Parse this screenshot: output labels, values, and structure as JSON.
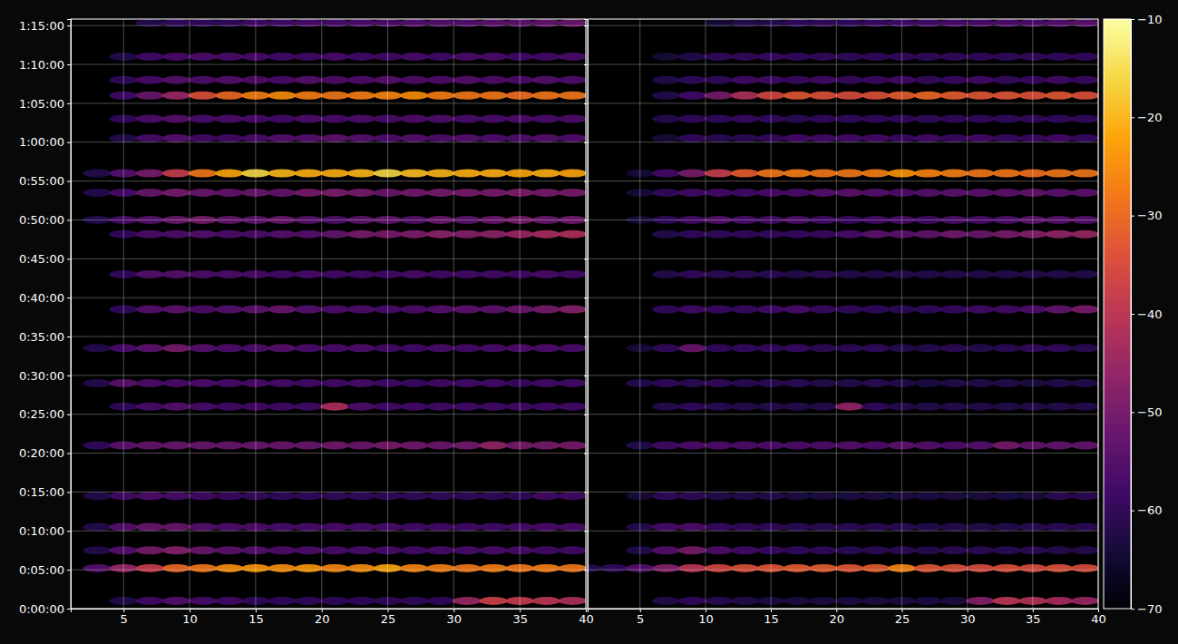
{
  "chart_data": [
    {
      "type": "heatmap",
      "grid": true,
      "xlim": [
        1,
        40
      ],
      "xticks": [
        5,
        10,
        15,
        20,
        25,
        30,
        35,
        40
      ],
      "ylim": [
        0,
        4550
      ],
      "yticks": [
        {
          "value": 0,
          "label": "0:00:00"
        },
        {
          "value": 300,
          "label": "0:05:00"
        },
        {
          "value": 600,
          "label": "0:10:00"
        },
        {
          "value": 900,
          "label": "0:15:00"
        },
        {
          "value": 1200,
          "label": "0:20:00"
        },
        {
          "value": 1500,
          "label": "0:25:00"
        },
        {
          "value": 1800,
          "label": "0:30:00"
        },
        {
          "value": 2100,
          "label": "0:35:00"
        },
        {
          "value": 2400,
          "label": "0:40:00"
        },
        {
          "value": 2700,
          "label": "0:45:00"
        },
        {
          "value": 3000,
          "label": "0:50:00"
        },
        {
          "value": 3300,
          "label": "0:55:00"
        },
        {
          "value": 3600,
          "label": "1:00:00"
        },
        {
          "value": 3900,
          "label": "1:05:00"
        },
        {
          "value": 4200,
          "label": "1:10:00"
        },
        {
          "value": 4500,
          "label": "1:15:00"
        }
      ],
      "x": [
        1,
        3,
        5,
        7,
        9,
        11,
        13,
        15,
        17,
        19,
        21,
        23,
        25,
        27,
        29,
        31,
        33,
        35,
        37,
        39
      ],
      "y": [
        60,
        312,
        450,
        630,
        870,
        1260,
        1560,
        1740,
        2010,
        2310,
        2580,
        2890,
        3000,
        3210,
        3360,
        3630,
        3780,
        3960,
        4080,
        4260,
        4520
      ],
      "values": [
        [
          null,
          null,
          -62,
          -58,
          -55,
          -57,
          -58,
          -60,
          -60,
          -60,
          -60,
          -60,
          -60,
          -60,
          -60,
          -45,
          -37,
          -38,
          -40,
          -42
        ],
        [
          null,
          -55,
          -45,
          -38,
          -30,
          -28,
          -25,
          -24,
          -25,
          -24,
          -26,
          -25,
          -22,
          -26,
          -27,
          -28,
          -27,
          -28,
          -27,
          -28
        ],
        [
          null,
          -62,
          -55,
          -50,
          -48,
          -52,
          -54,
          -55,
          -56,
          -56,
          -57,
          -57,
          -57,
          -58,
          -57,
          -57,
          -57,
          -57,
          -58,
          -58
        ],
        [
          null,
          -62,
          -55,
          -52,
          -52,
          -55,
          -56,
          -56,
          -57,
          -57,
          -57,
          -57,
          -57,
          -58,
          -58,
          -58,
          -58,
          -57,
          -57,
          -57
        ],
        [
          null,
          -62,
          -58,
          -56,
          -57,
          -58,
          -59,
          -59,
          -60,
          -60,
          -60,
          -60,
          -60,
          -60,
          -60,
          -60,
          -60,
          -60,
          -58,
          -58
        ],
        [
          null,
          -60,
          -54,
          -53,
          -52,
          -52,
          -52,
          -52,
          -52,
          -52,
          -51,
          -52,
          -50,
          -51,
          -52,
          -51,
          -46,
          -50,
          -50,
          -50
        ],
        [
          null,
          null,
          -60,
          -57,
          -55,
          -57,
          -58,
          -58,
          -58,
          -58,
          -42,
          -56,
          -58,
          -58,
          -58,
          -58,
          -58,
          -58,
          -58,
          -58
        ],
        [
          null,
          -62,
          -54,
          -56,
          -57,
          -56,
          -57,
          -57,
          -57,
          -58,
          -58,
          -57,
          -58,
          -59,
          -58,
          -58,
          -58,
          -59,
          -58,
          -58
        ],
        [
          null,
          -62,
          -57,
          -54,
          -50,
          -55,
          -56,
          -56,
          -55,
          -57,
          -57,
          -56,
          -58,
          -58,
          -57,
          -58,
          -57,
          -56,
          -56,
          -57
        ],
        [
          null,
          null,
          -60,
          -55,
          -54,
          -56,
          -55,
          -54,
          -52,
          -55,
          -56,
          -56,
          -57,
          -56,
          -55,
          -54,
          -54,
          -52,
          -50,
          -48
        ],
        [
          null,
          null,
          -60,
          -55,
          -55,
          -56,
          -56,
          -57,
          -58,
          -57,
          -58,
          -58,
          -58,
          -57,
          -58,
          -58,
          -58,
          -58,
          -57,
          -58
        ],
        [
          null,
          null,
          -60,
          -56,
          -56,
          -55,
          -56,
          -56,
          -55,
          -55,
          -53,
          -50,
          -50,
          -49,
          -47,
          -48,
          -47,
          -45,
          -43,
          -42
        ],
        [
          null,
          -62,
          -57,
          -55,
          -52,
          -50,
          -53,
          -54,
          -52,
          -55,
          -56,
          -54,
          -53,
          -55,
          -52,
          -54,
          -52,
          -50,
          -52,
          -51
        ],
        [
          null,
          -62,
          -57,
          -52,
          -50,
          -52,
          -53,
          -52,
          -53,
          -50,
          -49,
          -50,
          -52,
          -51,
          -50,
          -50,
          -50,
          -49,
          -50,
          -50
        ],
        [
          null,
          -62,
          -55,
          -50,
          -38,
          -28,
          -22,
          -16,
          -20,
          -21,
          -21,
          -20,
          -16,
          -19,
          -20,
          -21,
          -21,
          -22,
          -21,
          -22
        ],
        [
          null,
          null,
          -62,
          -57,
          -55,
          -58,
          -58,
          -57,
          -55,
          -55,
          -54,
          -55,
          -56,
          -55,
          -56,
          -55,
          -56,
          -56,
          -55,
          -56
        ],
        [
          null,
          null,
          -60,
          -56,
          -55,
          -57,
          -56,
          -57,
          -58,
          -56,
          -57,
          -56,
          -57,
          -56,
          -56,
          -57,
          -57,
          -56,
          -57,
          -56
        ],
        [
          null,
          null,
          -58,
          -52,
          -45,
          -34,
          -30,
          -27,
          -25,
          -27,
          -28,
          -27,
          -26,
          -25,
          -27,
          -28,
          -28,
          -29,
          -28,
          -28
        ],
        [
          null,
          null,
          -60,
          -57,
          -55,
          -56,
          -55,
          -56,
          -57,
          -55,
          -56,
          -56,
          -55,
          -56,
          -56,
          -55,
          -56,
          -56,
          -55,
          -56
        ],
        [
          null,
          null,
          -62,
          -58,
          -57,
          -56,
          -57,
          -57,
          -58,
          -58,
          -57,
          -58,
          -58,
          -57,
          -58,
          -57,
          -57,
          -58,
          -58,
          -57
        ],
        [
          null,
          null,
          null,
          -62,
          -60,
          -60,
          -60,
          -58,
          -58,
          -57,
          -57,
          -56,
          -56,
          -55,
          -55,
          -55,
          -54,
          -54,
          -53,
          -52
        ]
      ]
    },
    {
      "type": "heatmap",
      "grid": true,
      "tick_labels": "x",
      "xlim": [
        1,
        40
      ],
      "xticks": [
        5,
        10,
        15,
        20,
        25,
        30,
        35,
        40
      ],
      "ylim": [
        0,
        4550
      ],
      "yticks": [
        0,
        300,
        600,
        900,
        1200,
        1500,
        1800,
        2100,
        2400,
        2700,
        3000,
        3300,
        3600,
        3900,
        4200,
        4500
      ],
      "x": [
        1,
        3,
        5,
        7,
        9,
        11,
        13,
        15,
        17,
        19,
        21,
        23,
        25,
        27,
        29,
        31,
        33,
        35,
        37,
        39
      ],
      "y": [
        60,
        312,
        450,
        630,
        870,
        1260,
        1560,
        1740,
        2010,
        2310,
        2580,
        2890,
        3000,
        3210,
        3360,
        3630,
        3780,
        3960,
        4080,
        4260,
        4520
      ],
      "values": [
        [
          null,
          null,
          null,
          -62,
          -60,
          -61,
          -62,
          -63,
          -63,
          -63,
          -63,
          -63,
          -63,
          -63,
          -63,
          -48,
          -40,
          -41,
          -43,
          -45
        ],
        [
          -62,
          -60,
          -55,
          -48,
          -40,
          -36,
          -34,
          -33,
          -32,
          -32,
          -33,
          -32,
          -26,
          -33,
          -34,
          -35,
          -34,
          -35,
          -34,
          -35
        ],
        [
          null,
          null,
          -62,
          -55,
          -50,
          -56,
          -58,
          -59,
          -60,
          -60,
          -61,
          -61,
          -61,
          -62,
          -61,
          -61,
          -61,
          -61,
          -62,
          -62
        ],
        [
          null,
          null,
          -62,
          -57,
          -56,
          -59,
          -60,
          -60,
          -61,
          -61,
          -61,
          -61,
          -61,
          -62,
          -62,
          -62,
          -62,
          -61,
          -61,
          -61
        ],
        [
          null,
          null,
          -64,
          -60,
          -61,
          -62,
          -62,
          -62,
          -63,
          -63,
          -63,
          -63,
          -63,
          -63,
          -63,
          -63,
          -63,
          -63,
          -61,
          -61
        ],
        [
          null,
          null,
          -62,
          -58,
          -56,
          -56,
          -56,
          -56,
          -56,
          -56,
          -55,
          -56,
          -54,
          -55,
          -56,
          -55,
          -50,
          -53,
          -53,
          -53
        ],
        [
          null,
          null,
          null,
          -62,
          -60,
          -61,
          -62,
          -62,
          -62,
          -62,
          -46,
          -60,
          -62,
          -62,
          -62,
          -62,
          -62,
          -62,
          -62,
          -62
        ],
        [
          null,
          null,
          -62,
          -60,
          -61,
          -60,
          -61,
          -61,
          -61,
          -62,
          -62,
          -61,
          -62,
          -63,
          -62,
          -62,
          -62,
          -63,
          -62,
          -62
        ],
        [
          null,
          null,
          -64,
          -60,
          -52,
          -60,
          -60,
          -60,
          -59,
          -61,
          -61,
          -60,
          -62,
          -62,
          -61,
          -62,
          -61,
          -60,
          -60,
          -61
        ],
        [
          null,
          null,
          null,
          -60,
          -58,
          -59,
          -59,
          -58,
          -57,
          -59,
          -60,
          -60,
          -61,
          -60,
          -59,
          -58,
          -58,
          -56,
          -53,
          -50
        ],
        [
          null,
          null,
          null,
          -62,
          -60,
          -61,
          -61,
          -61,
          -62,
          -61,
          -62,
          -62,
          -62,
          -62,
          -62,
          -62,
          -62,
          -62,
          -62,
          -62
        ],
        [
          null,
          null,
          null,
          -62,
          -60,
          -60,
          -60,
          -60,
          -59,
          -59,
          -57,
          -54,
          -54,
          -53,
          -51,
          -52,
          -50,
          -48,
          -46,
          -45
        ],
        [
          null,
          null,
          -64,
          -60,
          -58,
          -55,
          -57,
          -58,
          -56,
          -58,
          -59,
          -58,
          -57,
          -58,
          -56,
          -57,
          -56,
          -54,
          -55,
          -55
        ],
        [
          null,
          null,
          -64,
          -60,
          -58,
          -58,
          -58,
          -57,
          -57,
          -55,
          -54,
          -55,
          -56,
          -55,
          -54,
          -54,
          -54,
          -53,
          -54,
          -54
        ],
        [
          null,
          null,
          -64,
          -58,
          -50,
          -38,
          -32,
          -28,
          -27,
          -28,
          -28,
          -27,
          -24,
          -26,
          -27,
          -28,
          -28,
          -29,
          -28,
          -28
        ],
        [
          null,
          null,
          null,
          -64,
          -60,
          -61,
          -61,
          -60,
          -58,
          -58,
          -58,
          -58,
          -59,
          -58,
          -59,
          -58,
          -59,
          -59,
          -58,
          -59
        ],
        [
          null,
          null,
          null,
          -62,
          -60,
          -60,
          -59,
          -60,
          -61,
          -60,
          -60,
          -60,
          -60,
          -60,
          -60,
          -60,
          -60,
          -60,
          -60,
          -60
        ],
        [
          null,
          null,
          null,
          -62,
          -58,
          -50,
          -42,
          -36,
          -33,
          -34,
          -35,
          -34,
          -32,
          -30,
          -32,
          -33,
          -33,
          -34,
          -33,
          -34
        ],
        [
          null,
          null,
          null,
          -62,
          -60,
          -60,
          -58,
          -58,
          -59,
          -58,
          -59,
          -59,
          -58,
          -59,
          -59,
          -58,
          -59,
          -59,
          -58,
          -59
        ],
        [
          null,
          null,
          null,
          -64,
          -62,
          -60,
          -60,
          -59,
          -60,
          -60,
          -60,
          -60,
          -60,
          -60,
          -60,
          -60,
          -60,
          -60,
          -60,
          -60
        ],
        [
          null,
          null,
          null,
          null,
          null,
          -64,
          -62,
          -62,
          -60,
          -60,
          -60,
          -59,
          -58,
          -58,
          -57,
          -57,
          -56,
          -56,
          -55,
          -54
        ]
      ],
      "colorbar": {
        "range": [
          -70,
          -10
        ],
        "ticks": [
          {
            "value": -70,
            "label": "−70"
          },
          {
            "value": -60,
            "label": "−60"
          },
          {
            "value": -50,
            "label": "−50"
          },
          {
            "value": -40,
            "label": "−40"
          },
          {
            "value": -30,
            "label": "−30"
          },
          {
            "value": -20,
            "label": "−20"
          },
          {
            "value": -10,
            "label": "−10"
          }
        ]
      }
    }
  ]
}
